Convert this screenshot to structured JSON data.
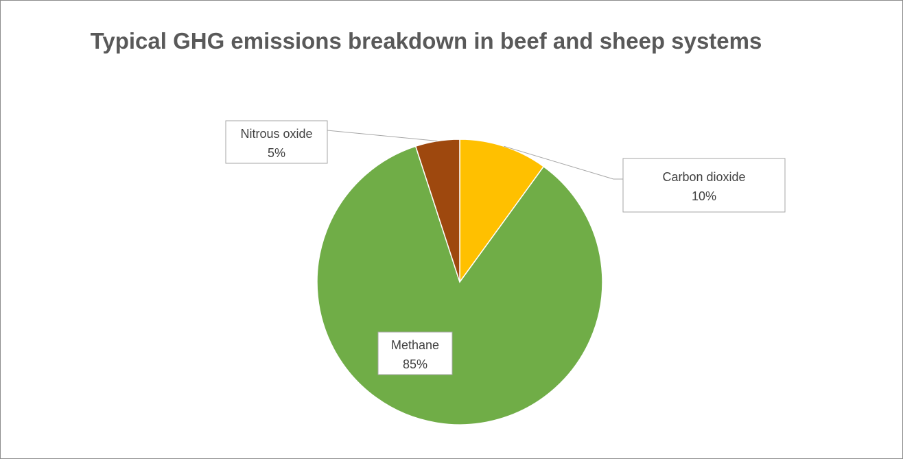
{
  "chart_data": {
    "type": "pie",
    "title": "Typical GHG emissions breakdown in beef and sheep systems",
    "slices": [
      {
        "label": "Carbon dioxide",
        "value": 10,
        "display": "10%",
        "color": "#ffc000"
      },
      {
        "label": "Methane",
        "value": 85,
        "display": "85%",
        "color": "#70ad47"
      },
      {
        "label": "Nitrous oxide",
        "value": 5,
        "display": "5%",
        "color": "#9e480e"
      }
    ],
    "legend": "none",
    "data_labels": "category name and percentage"
  }
}
